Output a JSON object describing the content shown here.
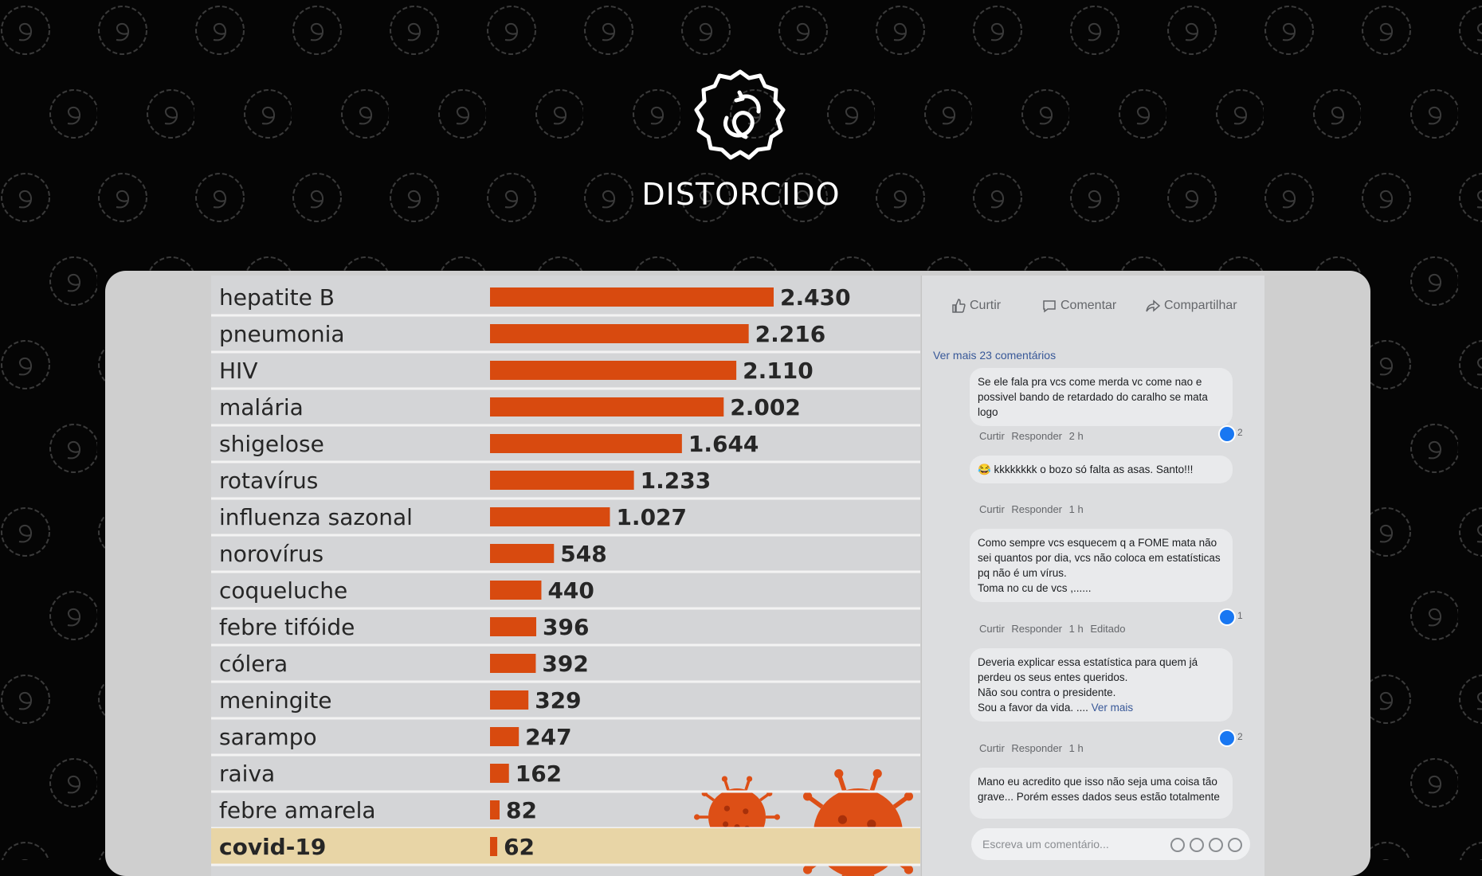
{
  "verdict": "DISTORCIDO",
  "badge_icon": "distorted-seal-icon",
  "colors": {
    "background": "#050505",
    "bar": "#d84a0f",
    "highlight_row": "#e8d5a6",
    "virus": "#dd4f16"
  },
  "chart_data": {
    "type": "bar",
    "orientation": "horizontal",
    "categories": [
      "hepatite B",
      "pneumonia",
      "HIV",
      "malária",
      "shigelose",
      "rotavírus",
      "influenza sazonal",
      "norovírus",
      "coqueluche",
      "febre tifóide",
      "cólera",
      "meningite",
      "sarampo",
      "raiva",
      "febre amarela",
      "covid-19"
    ],
    "values": [
      2430,
      2216,
      2110,
      2002,
      1644,
      1233,
      1027,
      548,
      440,
      396,
      392,
      329,
      247,
      162,
      82,
      62
    ],
    "value_labels": [
      "2.430",
      "2.216",
      "2.110",
      "2.002",
      "1.644",
      "1.233",
      "1.027",
      "548",
      "440",
      "396",
      "392",
      "329",
      "247",
      "162",
      "82",
      "62"
    ],
    "highlighted_category": "covid-19",
    "xlim": [
      0,
      2430
    ],
    "grid": false,
    "decoration": "coronavirus-illustration"
  },
  "facebook": {
    "actions": {
      "like": "Curtir",
      "comment": "Comentar",
      "share": "Compartilhar"
    },
    "see_more_comments": "Ver mais 23 comentários",
    "comments": [
      {
        "text": "Se ele fala pra vcs come merda vc come nao e possivel bando de retardado do caralho se mata logo",
        "reply_meta": [
          "Curtir",
          "Responder",
          "2 h"
        ],
        "likes": "2",
        "see_more": ""
      },
      {
        "text": "😂 kkkkkkkk o bozo só falta as asas. Santo!!!",
        "reply_meta": [
          "Curtir",
          "Responder",
          "1 h"
        ],
        "likes": "",
        "see_more": ""
      },
      {
        "text": "Como sempre vcs esquecem q a FOME mata não sei quantos por dia, vcs não coloca em estatísticas pq não é um vírus.\nToma no cu de vcs ,......",
        "reply_meta": [
          "Curtir",
          "Responder",
          "1 h",
          "Editado"
        ],
        "likes": "1",
        "see_more": ""
      },
      {
        "text": "Deveria explicar essa estatística para quem já perdeu os seus entes queridos.\nNão sou contra o presidente.\nSou a favor da vida. ....",
        "reply_meta": [
          "Curtir",
          "Responder",
          "1 h"
        ],
        "likes": "2",
        "see_more": "Ver mais"
      },
      {
        "text": "Mano eu acredito que isso não seja uma coisa tão grave... Porém esses dados seus estão totalmente",
        "reply_meta": [],
        "likes": "",
        "see_more": ""
      }
    ],
    "composer_placeholder": "Escreva um comentário...",
    "composer_icons": [
      "emoji-icon",
      "camera-icon",
      "gif-icon",
      "sticker-icon"
    ]
  }
}
